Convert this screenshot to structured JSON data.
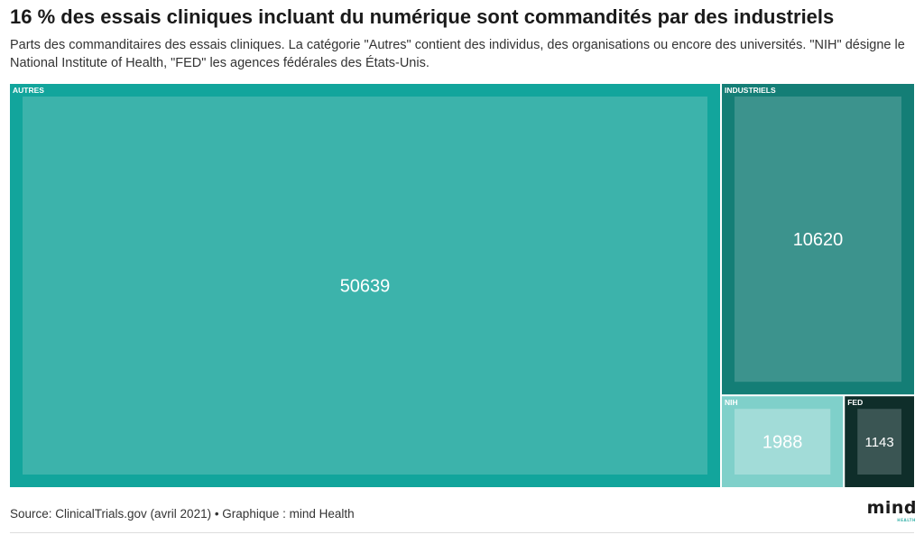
{
  "header": {
    "title": "16 % des essais cliniques incluant du numérique sont commandités par des industriels",
    "subtitle": "Parts des commanditaires des essais cliniques. La catégorie \"Autres\" contient des individus, des organisations ou encore des universités. \"NIH\" désigne le National Institute of Health, \"FED\" les agences fédérales des États-Unis."
  },
  "chart_data": {
    "type": "treemap",
    "nodes": [
      {
        "label": "AUTRES",
        "value": 50639,
        "color": "#12a59c",
        "inner_color": "#3cb3ab"
      },
      {
        "label": "INDUSTRIELS",
        "value": 10620,
        "color": "#147e76",
        "inner_color": "#3c938d"
      },
      {
        "label": "NIH",
        "value": 1988,
        "color": "#7fd0ca",
        "inner_color": "#a2dcd8"
      },
      {
        "label": "FED",
        "value": 1143,
        "color": "#0f2e2a",
        "inner_color": "#3a5553"
      }
    ]
  },
  "footer": {
    "source": "Source: ClinicalTrials.gov (avril 2021) • Graphique : mind Health"
  },
  "logo": {
    "word": "mind",
    "sub": "HEALTH"
  }
}
